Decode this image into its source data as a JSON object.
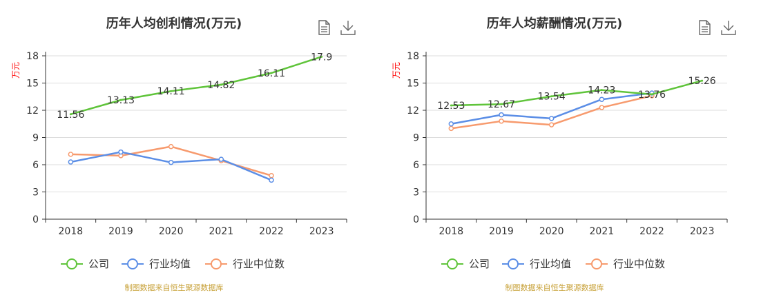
{
  "colors": {
    "company": "#5fc43a",
    "industry_avg": "#5b8ee6",
    "industry_median": "#f79a6d",
    "grid": "#dddddd",
    "axis": "#333333",
    "source": "#c8a23a"
  },
  "chart_data": [
    {
      "type": "line",
      "title": "历年人均创利情况(万元)",
      "ylabel": "万元",
      "ylim": [
        0,
        18
      ],
      "yticks": [
        0,
        3,
        6,
        9,
        12,
        15,
        18
      ],
      "categories": [
        "2018",
        "2019",
        "2020",
        "2021",
        "2022",
        "2023"
      ],
      "series": [
        {
          "name": "公司",
          "key": "company",
          "values": [
            11.56,
            13.13,
            14.11,
            14.82,
            16.11,
            17.9
          ],
          "labels": [
            "11.56",
            "13.13",
            "14.11",
            "14.82",
            "16.11",
            "17.9"
          ]
        },
        {
          "name": "行业均值",
          "key": "industry_avg",
          "values": [
            6.3,
            7.4,
            6.25,
            6.6,
            4.3,
            null
          ]
        },
        {
          "name": "行业中位数",
          "key": "industry_median",
          "values": [
            7.15,
            7.0,
            8.0,
            6.45,
            4.8,
            null
          ]
        }
      ],
      "source": "制图数据来自恒生聚源数据库"
    },
    {
      "type": "line",
      "title": "历年人均薪酬情况(万元)",
      "ylabel": "万元",
      "ylim": [
        0,
        18
      ],
      "yticks": [
        0,
        3,
        6,
        9,
        12,
        15,
        18
      ],
      "categories": [
        "2018",
        "2019",
        "2020",
        "2021",
        "2022",
        "2023"
      ],
      "series": [
        {
          "name": "公司",
          "key": "company",
          "values": [
            12.53,
            12.67,
            13.54,
            14.23,
            13.76,
            15.26
          ],
          "labels": [
            "12.53",
            "12.67",
            "13.54",
            "14.23",
            "13.76",
            "15.26"
          ]
        },
        {
          "name": "行业均值",
          "key": "industry_avg",
          "values": [
            10.5,
            11.5,
            11.1,
            13.2,
            13.9,
            null
          ]
        },
        {
          "name": "行业中位数",
          "key": "industry_median",
          "values": [
            10.0,
            10.8,
            10.4,
            12.3,
            13.6,
            null
          ]
        }
      ],
      "source": "制图数据来自恒生聚源数据库"
    }
  ],
  "toolbar": {
    "icons": [
      "document-icon",
      "download-icon"
    ]
  }
}
